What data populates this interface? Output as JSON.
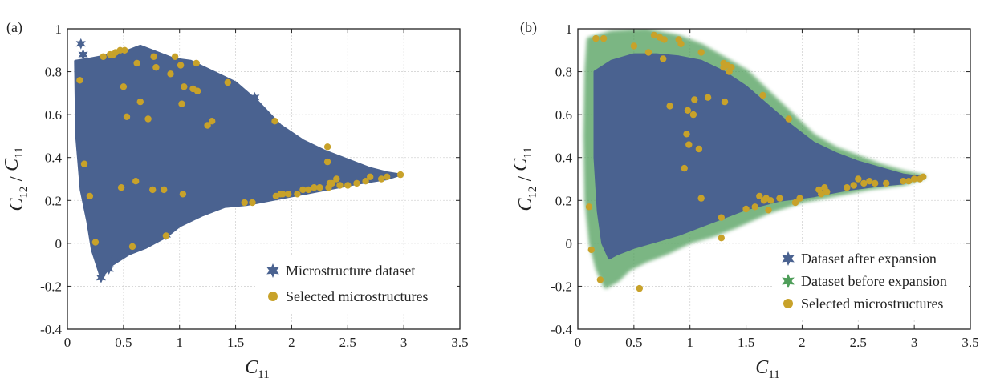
{
  "chart_data": [
    {
      "type": "scatter",
      "panel_label": "(a)",
      "xlabel_main": "C",
      "xlabel_sub": "11",
      "ylabel_parts": [
        {
          "main": "C",
          "sub": "12"
        },
        {
          "sep": " / "
        },
        {
          "main": "C",
          "sub": "11"
        }
      ],
      "xlim": [
        0,
        3.5
      ],
      "ylim": [
        -0.4,
        1
      ],
      "xticks": [
        0,
        0.5,
        1,
        1.5,
        2,
        2.5,
        3,
        3.5
      ],
      "xtick_labels": [
        "0",
        "0.5",
        "1",
        "1.5",
        "2",
        "2.5",
        "3",
        "3.5"
      ],
      "yticks": [
        -0.4,
        -0.2,
        0,
        0.2,
        0.4,
        0.6,
        0.8,
        1
      ],
      "ytick_labels": [
        "-0.4",
        "-0.2",
        "0",
        "0.2",
        "0.4",
        "0.6",
        "0.8",
        "1"
      ],
      "grid": true,
      "legend_position": "bottom-right",
      "series": [
        {
          "name": "Microstructure dataset",
          "color": "#4a6290",
          "marker": "star",
          "region_outline": [
            [
              0.07,
              0.85
            ],
            [
              0.2,
              0.86
            ],
            [
              0.4,
              0.88
            ],
            [
              0.55,
              0.9
            ],
            [
              0.65,
              0.92
            ],
            [
              0.8,
              0.89
            ],
            [
              0.95,
              0.86
            ],
            [
              1.1,
              0.85
            ],
            [
              1.3,
              0.8
            ],
            [
              1.5,
              0.75
            ],
            [
              1.7,
              0.66
            ],
            [
              1.9,
              0.55
            ],
            [
              2.1,
              0.48
            ],
            [
              2.3,
              0.43
            ],
            [
              2.5,
              0.39
            ],
            [
              2.7,
              0.35
            ],
            [
              2.85,
              0.33
            ],
            [
              2.97,
              0.32
            ],
            [
              2.85,
              0.3
            ],
            [
              2.6,
              0.28
            ],
            [
              2.3,
              0.25
            ],
            [
              2.0,
              0.22
            ],
            [
              1.8,
              0.2
            ],
            [
              1.6,
              0.18
            ],
            [
              1.4,
              0.17
            ],
            [
              1.2,
              0.13
            ],
            [
              1.0,
              0.08
            ],
            [
              0.88,
              0.03
            ],
            [
              0.7,
              -0.02
            ],
            [
              0.55,
              -0.05
            ],
            [
              0.4,
              -0.1
            ],
            [
              0.3,
              -0.16
            ],
            [
              0.22,
              -0.03
            ],
            [
              0.18,
              0.1
            ],
            [
              0.12,
              0.25
            ],
            [
              0.08,
              0.5
            ],
            [
              0.07,
              0.85
            ]
          ],
          "points": [
            [
              0.12,
              0.93
            ],
            [
              0.14,
              0.88
            ],
            [
              0.3,
              -0.16
            ],
            [
              0.37,
              -0.12
            ],
            [
              0.28,
              -0.06
            ],
            [
              0.4,
              -0.08
            ],
            [
              1.67,
              0.68
            ],
            [
              0.25,
              0.005
            ],
            [
              0.88,
              0.04
            ]
          ]
        },
        {
          "name": "Selected microstructures",
          "color": "#c8a22a",
          "marker": "circle",
          "points": [
            [
              0.11,
              0.76
            ],
            [
              0.15,
              0.37
            ],
            [
              0.2,
              0.22
            ],
            [
              0.25,
              0.005
            ],
            [
              0.32,
              0.87
            ],
            [
              0.38,
              0.88
            ],
            [
              0.41,
              0.88
            ],
            [
              0.43,
              0.89
            ],
            [
              0.47,
              0.9
            ],
            [
              0.51,
              0.9
            ],
            [
              0.5,
              0.73
            ],
            [
              0.53,
              0.59
            ],
            [
              0.48,
              0.26
            ],
            [
              0.58,
              -0.015
            ],
            [
              0.61,
              0.29
            ],
            [
              0.62,
              0.84
            ],
            [
              0.65,
              0.66
            ],
            [
              0.72,
              0.58
            ],
            [
              0.76,
              0.25
            ],
            [
              0.77,
              0.87
            ],
            [
              0.79,
              0.82
            ],
            [
              0.86,
              0.25
            ],
            [
              0.88,
              0.035
            ],
            [
              0.92,
              0.79
            ],
            [
              0.96,
              0.87
            ],
            [
              1.01,
              0.83
            ],
            [
              1.02,
              0.65
            ],
            [
              1.04,
              0.73
            ],
            [
              1.03,
              0.23
            ],
            [
              1.12,
              0.72
            ],
            [
              1.15,
              0.84
            ],
            [
              1.16,
              0.71
            ],
            [
              1.25,
              0.55
            ],
            [
              1.29,
              0.57
            ],
            [
              1.43,
              0.75
            ],
            [
              1.58,
              0.19
            ],
            [
              1.65,
              0.19
            ],
            [
              1.85,
              0.57
            ],
            [
              1.86,
              0.22
            ],
            [
              1.9,
              0.23
            ],
            [
              1.92,
              0.23
            ],
            [
              1.97,
              0.23
            ],
            [
              2.05,
              0.23
            ],
            [
              2.1,
              0.25
            ],
            [
              2.15,
              0.25
            ],
            [
              2.2,
              0.26
            ],
            [
              2.25,
              0.26
            ],
            [
              2.32,
              0.45
            ],
            [
              2.32,
              0.38
            ],
            [
              2.34,
              0.28
            ],
            [
              2.33,
              0.26
            ],
            [
              2.36,
              0.28
            ],
            [
              2.4,
              0.3
            ],
            [
              2.43,
              0.27
            ],
            [
              2.5,
              0.27
            ],
            [
              2.58,
              0.28
            ],
            [
              2.66,
              0.29
            ],
            [
              2.7,
              0.31
            ],
            [
              2.8,
              0.3
            ],
            [
              2.85,
              0.31
            ],
            [
              2.97,
              0.32
            ]
          ]
        }
      ]
    },
    {
      "type": "scatter",
      "panel_label": "(b)",
      "xlabel_main": "C",
      "xlabel_sub": "11",
      "ylabel_parts": [
        {
          "main": "C",
          "sub": "12"
        },
        {
          "sep": " / "
        },
        {
          "main": "C",
          "sub": "11"
        }
      ],
      "xlim": [
        0,
        3.5
      ],
      "ylim": [
        -0.4,
        1
      ],
      "xticks": [
        0,
        0.5,
        1,
        1.5,
        2,
        2.5,
        3,
        3.5
      ],
      "xtick_labels": [
        "0",
        "0.5",
        "1",
        "1.5",
        "2",
        "2.5",
        "3",
        "3.5"
      ],
      "yticks": [
        -0.4,
        -0.2,
        0,
        0.2,
        0.4,
        0.6,
        0.8,
        1
      ],
      "ytick_labels": [
        "-0.4",
        "-0.2",
        "0",
        "0.2",
        "0.4",
        "0.6",
        "0.8",
        "1"
      ],
      "grid": true,
      "legend_position": "bottom-right",
      "series": [
        {
          "name": "Dataset after expansion",
          "color": "#4a6290",
          "marker": "star",
          "region_outline": [
            [
              0.15,
              0.8
            ],
            [
              0.3,
              0.85
            ],
            [
              0.5,
              0.88
            ],
            [
              0.7,
              0.88
            ],
            [
              0.9,
              0.87
            ],
            [
              1.1,
              0.85
            ],
            [
              1.3,
              0.8
            ],
            [
              1.5,
              0.73
            ],
            [
              1.7,
              0.64
            ],
            [
              1.9,
              0.55
            ],
            [
              2.1,
              0.47
            ],
            [
              2.3,
              0.42
            ],
            [
              2.5,
              0.38
            ],
            [
              2.7,
              0.35
            ],
            [
              2.9,
              0.32
            ],
            [
              3.05,
              0.31
            ],
            [
              2.9,
              0.28
            ],
            [
              2.7,
              0.27
            ],
            [
              2.4,
              0.25
            ],
            [
              2.1,
              0.22
            ],
            [
              1.8,
              0.2
            ],
            [
              1.5,
              0.16
            ],
            [
              1.3,
              0.12
            ],
            [
              1.1,
              0.08
            ],
            [
              0.9,
              0.04
            ],
            [
              0.7,
              0.01
            ],
            [
              0.5,
              -0.02
            ],
            [
              0.35,
              -0.05
            ],
            [
              0.28,
              -0.07
            ],
            [
              0.22,
              0.0
            ],
            [
              0.18,
              0.15
            ],
            [
              0.15,
              0.4
            ],
            [
              0.15,
              0.8
            ]
          ]
        },
        {
          "name": "Dataset before expansion",
          "color": "#4f9e5a",
          "marker": "star",
          "region_outline": [
            [
              0.1,
              0.95
            ],
            [
              0.3,
              0.98
            ],
            [
              0.6,
              0.99
            ],
            [
              0.9,
              0.96
            ],
            [
              1.1,
              0.92
            ],
            [
              1.3,
              0.86
            ],
            [
              1.5,
              0.8
            ],
            [
              1.7,
              0.7
            ],
            [
              1.9,
              0.6
            ],
            [
              2.1,
              0.5
            ],
            [
              2.3,
              0.44
            ],
            [
              2.5,
              0.4
            ],
            [
              2.7,
              0.36
            ],
            [
              2.9,
              0.33
            ],
            [
              3.08,
              0.31
            ],
            [
              2.9,
              0.28
            ],
            [
              2.6,
              0.26
            ],
            [
              2.3,
              0.23
            ],
            [
              2.0,
              0.2
            ],
            [
              1.7,
              0.15
            ],
            [
              1.4,
              0.08
            ],
            [
              1.2,
              0.04
            ],
            [
              1.0,
              0.01
            ],
            [
              0.8,
              -0.04
            ],
            [
              0.6,
              -0.08
            ],
            [
              0.45,
              -0.12
            ],
            [
              0.35,
              -0.17
            ],
            [
              0.25,
              -0.2
            ],
            [
              0.18,
              -0.12
            ],
            [
              0.12,
              0.0
            ],
            [
              0.08,
              0.2
            ],
            [
              0.07,
              0.5
            ],
            [
              0.08,
              0.8
            ],
            [
              0.1,
              0.95
            ]
          ]
        },
        {
          "name": "Selected microstructures",
          "color": "#c8a22a",
          "marker": "circle",
          "points": [
            [
              0.1,
              0.17
            ],
            [
              0.12,
              -0.03
            ],
            [
              0.2,
              -0.17
            ],
            [
              0.16,
              0.955
            ],
            [
              0.23,
              0.955
            ],
            [
              0.5,
              0.92
            ],
            [
              0.63,
              0.89
            ],
            [
              0.68,
              0.97
            ],
            [
              0.73,
              0.96
            ],
            [
              0.76,
              0.86
            ],
            [
              0.77,
              0.95
            ],
            [
              0.82,
              0.64
            ],
            [
              0.9,
              0.95
            ],
            [
              0.92,
              0.93
            ],
            [
              0.95,
              0.35
            ],
            [
              0.97,
              0.51
            ],
            [
              0.98,
              0.62
            ],
            [
              0.99,
              0.46
            ],
            [
              1.03,
              0.6
            ],
            [
              1.04,
              0.67
            ],
            [
              1.08,
              0.44
            ],
            [
              1.1,
              0.21
            ],
            [
              1.1,
              0.89
            ],
            [
              1.16,
              0.68
            ],
            [
              1.28,
              0.12
            ],
            [
              1.28,
              0.025
            ],
            [
              1.3,
              0.84
            ],
            [
              1.3,
              0.82
            ],
            [
              1.33,
              0.83
            ],
            [
              1.35,
              0.8
            ],
            [
              1.37,
              0.82
            ],
            [
              1.31,
              0.66
            ],
            [
              1.5,
              0.16
            ],
            [
              1.58,
              0.17
            ],
            [
              1.62,
              0.22
            ],
            [
              1.65,
              0.69
            ],
            [
              1.66,
              0.2
            ],
            [
              1.68,
              0.21
            ],
            [
              1.7,
              0.155
            ],
            [
              1.72,
              0.2
            ],
            [
              1.8,
              0.21
            ],
            [
              1.88,
              0.58
            ],
            [
              1.94,
              0.19
            ],
            [
              1.98,
              0.21
            ],
            [
              2.15,
              0.25
            ],
            [
              2.17,
              0.23
            ],
            [
              2.2,
              0.26
            ],
            [
              2.22,
              0.24
            ],
            [
              2.4,
              0.26
            ],
            [
              2.46,
              0.27
            ],
            [
              2.5,
              0.3
            ],
            [
              2.55,
              0.28
            ],
            [
              2.6,
              0.29
            ],
            [
              2.65,
              0.28
            ],
            [
              2.75,
              0.28
            ],
            [
              2.9,
              0.29
            ],
            [
              2.95,
              0.29
            ],
            [
              3.0,
              0.3
            ],
            [
              3.05,
              0.3
            ],
            [
              3.08,
              0.31
            ],
            [
              0.55,
              -0.21
            ]
          ]
        }
      ]
    }
  ]
}
